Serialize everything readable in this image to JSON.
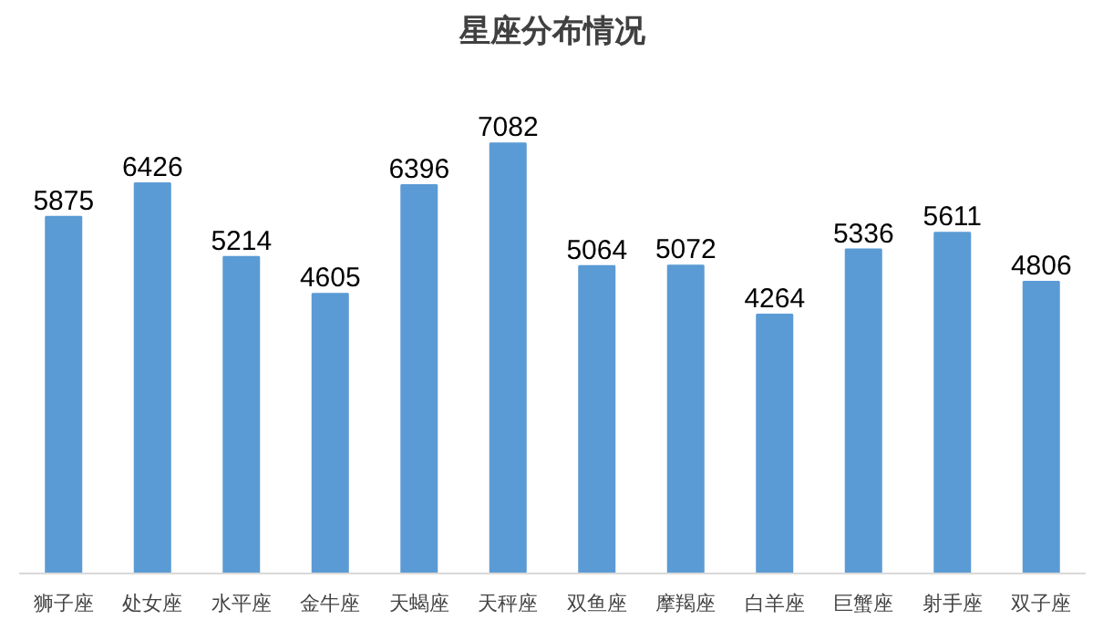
{
  "chart_data": {
    "type": "bar",
    "title": "星座分布情况",
    "categories": [
      "狮子座",
      "处女座",
      "水平座",
      "金牛座",
      "天蝎座",
      "天秤座",
      "双鱼座",
      "摩羯座",
      "白羊座",
      "巨蟹座",
      "射手座",
      "双子座"
    ],
    "values": [
      5875,
      6426,
      5214,
      4605,
      6396,
      7082,
      5064,
      5072,
      4264,
      5336,
      5611,
      4806
    ],
    "color": "#5b9bd5",
    "data_labels": true,
    "grid": false
  }
}
